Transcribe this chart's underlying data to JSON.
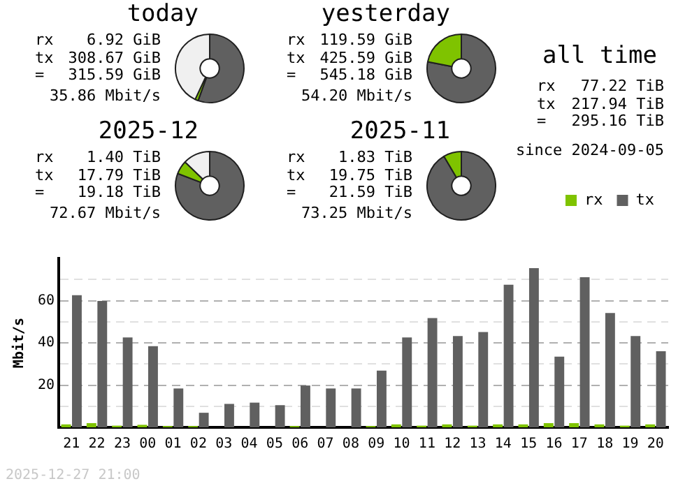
{
  "chart_data": [
    {
      "type": "donut",
      "title": "today",
      "categories": [
        null,
        null,
        null
      ],
      "values": [
        55.5,
        1.5,
        43
      ],
      "colors": [
        "#606060",
        "#7fc300",
        "#f0f0f0"
      ],
      "annotations": [
        "rx",
        "6.92 GiB",
        "tx",
        "308.67 GiB",
        "=",
        "315.59 GiB",
        "35.86 Mbit/s"
      ]
    },
    {
      "type": "donut",
      "title": "yesterday",
      "categories": [
        null,
        null
      ],
      "values": [
        78.1,
        21.9
      ],
      "colors": [
        "#606060",
        "#7fc300"
      ],
      "annotations": [
        "rx",
        "119.59 GiB",
        "tx",
        "425.59 GiB",
        "=",
        "545.18 GiB",
        "54.20 Mbit/s"
      ]
    },
    {
      "type": "other",
      "title": "all time",
      "annotations": [
        "rx",
        "77.22 TiB",
        "tx",
        "217.94 TiB",
        "=",
        "295.16 TiB",
        "since 2024-09-05"
      ]
    },
    {
      "type": "donut",
      "title": "2025-12",
      "categories": [
        null,
        null,
        null
      ],
      "values": [
        80.8,
        6.4,
        12.8
      ],
      "colors": [
        "#606060",
        "#7fc300",
        "#f0f0f0"
      ],
      "annotations": [
        "rx",
        "1.40 TiB",
        "tx",
        "17.79 TiB",
        "=",
        "19.18 TiB",
        "72.67 Mbit/s"
      ]
    },
    {
      "type": "donut",
      "title": "2025-11",
      "categories": [
        null,
        null
      ],
      "values": [
        91.5,
        8.5
      ],
      "colors": [
        "#606060",
        "#7fc300"
      ],
      "annotations": [
        "rx",
        "1.83 TiB",
        "tx",
        "19.75 TiB",
        "=",
        "21.59 TiB",
        "73.25 Mbit/s"
      ]
    },
    {
      "type": "bar",
      "categories": [
        "21",
        "22",
        "23",
        "00",
        "01",
        "02",
        "03",
        "04",
        "05",
        "06",
        "07",
        "08",
        "09",
        "10",
        "11",
        "12",
        "13",
        "14",
        "15",
        "16",
        "17",
        "18",
        "19",
        "20"
      ],
      "ylabel": "Mbit/s",
      "ylim": [
        0,
        80
      ],
      "yticks": [
        {
          "value": 10,
          "label": null
        },
        20,
        {
          "value": 30,
          "label": null
        },
        40,
        {
          "value": 50,
          "label": null
        },
        60,
        {
          "value": 70,
          "label": null
        }
      ],
      "grid": "y",
      "legend": "top right",
      "annotations": [
        "2025-12-27 21:00"
      ],
      "series": [
        {
          "name": "rx",
          "color": "#7fc300",
          "values": [
            1.4,
            2,
            0.8,
            1.2,
            0.6,
            0.6,
            0,
            0,
            0,
            0.6,
            0,
            0,
            0.6,
            1.4,
            0.8,
            1.4,
            0.8,
            1.4,
            1.4,
            2,
            2,
            1.4,
            0.8,
            1.4
          ]
        },
        {
          "name": "tx",
          "color": "#606060",
          "values": [
            62.6,
            59.8,
            42.6,
            38.4,
            18.4,
            6.9,
            11.1,
            11.7,
            10.5,
            19.8,
            18.4,
            18.4,
            26.9,
            42.6,
            51.7,
            43.2,
            45.1,
            67.5,
            75.4,
            33.5,
            71.1,
            54.1,
            43.2,
            36.0
          ]
        }
      ]
    }
  ]
}
